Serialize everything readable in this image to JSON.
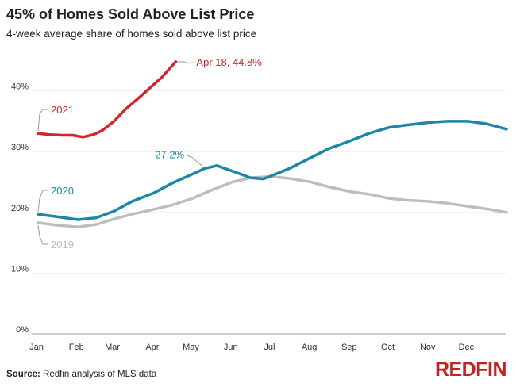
{
  "chart_data": {
    "type": "line",
    "title": "45% of Homes Sold Above List Price",
    "subtitle": "4-week average share of homes sold above list price",
    "xlabel": "",
    "ylabel": "",
    "x_ticks": [
      "Jan",
      "Feb",
      "Mar",
      "Apr",
      "May",
      "Jun",
      "Jul",
      "Aug",
      "Sep",
      "Oct",
      "Nov",
      "Dec"
    ],
    "y_ticks": [
      "0%",
      "10%",
      "20%",
      "30%",
      "40%"
    ],
    "ylim": [
      0,
      45
    ],
    "grid": true,
    "colors": {
      "2021": "#d3262b",
      "2020": "#1b86a6",
      "2019": "#bdbdbd"
    },
    "series": [
      {
        "name": "2019",
        "points": [
          [
            "01-01",
            18.3
          ],
          [
            "01-15",
            17.9
          ],
          [
            "02-01",
            17.6
          ],
          [
            "02-15",
            18.0
          ],
          [
            "03-01",
            18.9
          ],
          [
            "03-15",
            19.7
          ],
          [
            "04-01",
            20.5
          ],
          [
            "04-15",
            21.2
          ],
          [
            "05-01",
            22.3
          ],
          [
            "05-15",
            23.6
          ],
          [
            "06-01",
            25.0
          ],
          [
            "06-15",
            25.7
          ],
          [
            "07-01",
            25.9
          ],
          [
            "07-15",
            25.6
          ],
          [
            "08-01",
            25.0
          ],
          [
            "08-15",
            24.2
          ],
          [
            "09-01",
            23.4
          ],
          [
            "09-15",
            23.0
          ],
          [
            "10-01",
            22.3
          ],
          [
            "10-15",
            22.0
          ],
          [
            "11-01",
            21.8
          ],
          [
            "11-15",
            21.5
          ],
          [
            "12-01",
            21.0
          ],
          [
            "12-15",
            20.6
          ],
          [
            "12-31",
            20.0
          ]
        ]
      },
      {
        "name": "2020",
        "points": [
          [
            "01-01",
            19.7
          ],
          [
            "01-15",
            19.3
          ],
          [
            "02-01",
            18.8
          ],
          [
            "02-15",
            19.1
          ],
          [
            "03-01",
            20.2
          ],
          [
            "03-15",
            21.8
          ],
          [
            "04-01",
            23.2
          ],
          [
            "04-15",
            24.8
          ],
          [
            "05-01",
            26.3
          ],
          [
            "05-10",
            27.2
          ],
          [
            "05-20",
            27.7
          ],
          [
            "06-01",
            26.8
          ],
          [
            "06-15",
            25.7
          ],
          [
            "06-25",
            25.5
          ],
          [
            "07-01",
            26.0
          ],
          [
            "07-15",
            27.2
          ],
          [
            "08-01",
            29.0
          ],
          [
            "08-15",
            30.5
          ],
          [
            "09-01",
            31.8
          ],
          [
            "09-15",
            33.0
          ],
          [
            "10-01",
            34.0
          ],
          [
            "10-15",
            34.4
          ],
          [
            "11-01",
            34.8
          ],
          [
            "11-15",
            35.0
          ],
          [
            "12-01",
            35.0
          ],
          [
            "12-15",
            34.6
          ],
          [
            "12-31",
            33.7
          ]
        ]
      },
      {
        "name": "2021",
        "points": [
          [
            "01-01",
            33.0
          ],
          [
            "01-10",
            32.8
          ],
          [
            "01-20",
            32.7
          ],
          [
            "01-28",
            32.7
          ],
          [
            "02-05",
            32.4
          ],
          [
            "02-13",
            32.8
          ],
          [
            "02-20",
            33.5
          ],
          [
            "03-01",
            35.0
          ],
          [
            "03-10",
            37.0
          ],
          [
            "03-20",
            38.8
          ],
          [
            "03-29",
            40.5
          ],
          [
            "04-07",
            42.2
          ],
          [
            "04-18",
            44.8
          ]
        ]
      }
    ],
    "annotations": {
      "a2021": "Apr 18, 44.8%",
      "a2020": "27.2%",
      "l2021": "2021",
      "l2020": "2020",
      "l2019": "2019"
    }
  },
  "footer": {
    "source_label": "Source:",
    "source_text": " Redfin analysis of MLS data",
    "logo": "REDFIN"
  }
}
